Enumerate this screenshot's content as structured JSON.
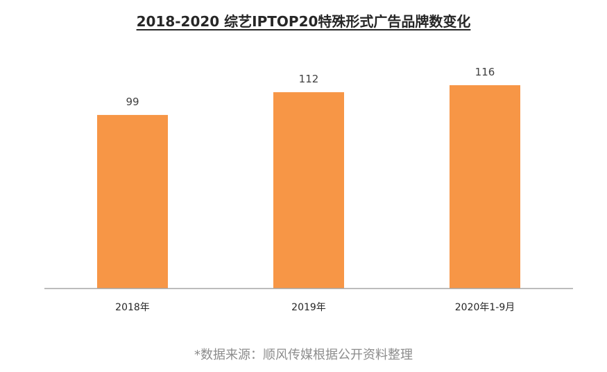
{
  "chart_data": {
    "type": "bar",
    "title": "2018-2020 综艺IPTOP20特殊形式广告品牌数变化",
    "categories": [
      "2018年",
      "2019年",
      "2020年1-9月"
    ],
    "values": [
      99,
      112,
      116
    ],
    "data_labels": [
      "99",
      "112",
      "116"
    ],
    "xlabel": "",
    "ylabel": "",
    "ylim": [
      0,
      116
    ],
    "grid": false,
    "legend": "none",
    "bar_color": "#F79646",
    "axis_color": "#A6A6A6"
  },
  "footer": {
    "source": "*数据来源：顺风传媒根据公开资料整理"
  }
}
